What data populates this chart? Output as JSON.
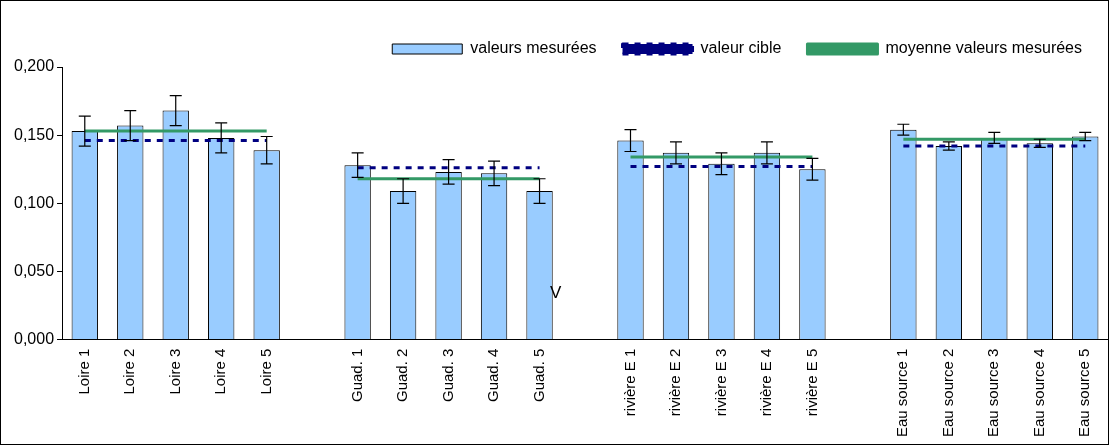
{
  "chart_data": {
    "type": "bar",
    "categories": [
      "Loire 1",
      "Loire 2",
      "Loire 3",
      "Loire 4",
      "Loire 5",
      null,
      "Guad. 1",
      "Guad. 2",
      "Guad. 3",
      "Guad. 4",
      "Guad. 5",
      null,
      "rivière E 1",
      "rivière E 2",
      "rivière E 3",
      "rivière E 4",
      "rivière E 5",
      null,
      "Eau source 1",
      "Eau source 2",
      "Eau source 3",
      "Eau source 4",
      "Eau source 5"
    ],
    "series": [
      {
        "name": "valeurs mesurées",
        "color": "#99ccff",
        "values": [
          0.153,
          0.157,
          0.168,
          0.148,
          0.139,
          null,
          0.128,
          0.109,
          0.123,
          0.122,
          0.109,
          null,
          0.146,
          0.137,
          0.129,
          0.137,
          0.125,
          null,
          0.154,
          0.142,
          0.148,
          0.144,
          0.149
        ],
        "errors": [
          0.011,
          0.011,
          0.011,
          0.011,
          0.01,
          null,
          0.009,
          0.009,
          0.009,
          0.009,
          0.009,
          null,
          0.008,
          0.008,
          0.008,
          0.008,
          0.008,
          null,
          0.004,
          0.003,
          0.004,
          0.003,
          0.003
        ]
      },
      {
        "name": "valeur cible",
        "type": "line",
        "color": "#000080",
        "line_style": "dashed",
        "values": [
          0.146,
          0.146,
          0.146,
          0.146,
          0.146,
          null,
          0.126,
          0.126,
          0.126,
          0.126,
          0.126,
          null,
          0.127,
          0.127,
          0.127,
          0.127,
          0.127,
          null,
          0.142,
          0.142,
          0.142,
          0.142,
          0.142
        ]
      },
      {
        "name": "moyenne valeurs mesurées",
        "type": "line",
        "color": "#339966",
        "line_style": "solid",
        "values": [
          0.153,
          0.153,
          0.153,
          0.153,
          0.153,
          null,
          0.118,
          0.118,
          0.118,
          0.118,
          0.118,
          null,
          0.134,
          0.134,
          0.134,
          0.134,
          0.134,
          null,
          0.147,
          0.147,
          0.147,
          0.147,
          0.147
        ]
      }
    ],
    "ylim": [
      0,
      0.2
    ],
    "yticks": [
      {
        "value": 0,
        "label": "0,000"
      },
      {
        "value": 0.05,
        "label": "0,050"
      },
      {
        "value": 0.1,
        "label": "0,100"
      },
      {
        "value": 0.15,
        "label": "0,150"
      },
      {
        "value": 0.2,
        "label": "0,200"
      }
    ],
    "annotations": [
      "V"
    ],
    "grid": false,
    "legend": "top",
    "marker": "none"
  }
}
